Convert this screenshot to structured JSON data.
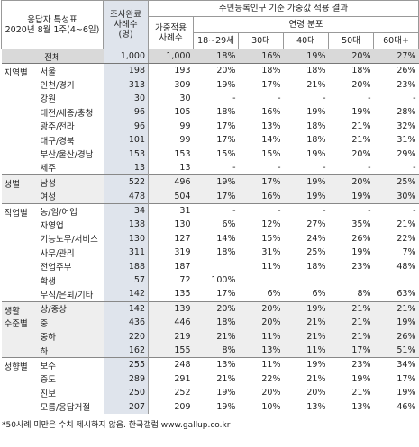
{
  "header": {
    "title": [
      "응답자 특성표",
      "2020년 8월 1주(4~6일)"
    ],
    "sample": [
      "조사완료",
      "사례수",
      "(명)"
    ],
    "weighted_title": "주민등록인구 기준 가중값 적용 결과",
    "weighted_sample": [
      "가중적용",
      "사례수"
    ],
    "age_title": "연령 분포",
    "ages": [
      "18~29세",
      "30대",
      "40대",
      "50대",
      "60대+"
    ]
  },
  "total": {
    "label": "전체",
    "cells": [
      "1,000",
      "1,000",
      "18%",
      "16%",
      "19%",
      "20%",
      "27%"
    ]
  },
  "groups": [
    {
      "name": [
        "지역별"
      ],
      "rows": [
        {
          "label": "서울",
          "cells": [
            "198",
            "193",
            "20%",
            "18%",
            "18%",
            "18%",
            "26%"
          ]
        },
        {
          "label": "인천/경기",
          "cells": [
            "313",
            "309",
            "19%",
            "17%",
            "21%",
            "20%",
            "23%"
          ]
        },
        {
          "label": "강원",
          "cells": [
            "30",
            "30",
            "-",
            "-",
            "-",
            "-",
            "-"
          ]
        },
        {
          "label": "대전/세종/충청",
          "cells": [
            "96",
            "105",
            "18%",
            "16%",
            "19%",
            "19%",
            "28%"
          ]
        },
        {
          "label": "광주/전라",
          "cells": [
            "96",
            "99",
            "17%",
            "13%",
            "18%",
            "21%",
            "32%"
          ]
        },
        {
          "label": "대구/경북",
          "cells": [
            "101",
            "99",
            "17%",
            "14%",
            "18%",
            "21%",
            "31%"
          ]
        },
        {
          "label": "부산/울산/경남",
          "cells": [
            "153",
            "153",
            "15%",
            "15%",
            "19%",
            "20%",
            "29%"
          ]
        },
        {
          "label": "제주",
          "cells": [
            "13",
            "13",
            "-",
            "-",
            "-",
            "-",
            "-"
          ]
        }
      ]
    },
    {
      "name": [
        "성별"
      ],
      "rows": [
        {
          "label": "남성",
          "cells": [
            "522",
            "496",
            "19%",
            "17%",
            "19%",
            "20%",
            "25%"
          ]
        },
        {
          "label": "여성",
          "cells": [
            "478",
            "504",
            "17%",
            "16%",
            "19%",
            "19%",
            "30%"
          ]
        }
      ]
    },
    {
      "name": [
        "직업별"
      ],
      "rows": [
        {
          "label": "농/임/어업",
          "cells": [
            "34",
            "31",
            "-",
            "-",
            "-",
            "-",
            "-"
          ]
        },
        {
          "label": "자영업",
          "cells": [
            "138",
            "130",
            "6%",
            "12%",
            "27%",
            "35%",
            "21%"
          ]
        },
        {
          "label": "기능노무/서비스",
          "cells": [
            "130",
            "127",
            "14%",
            "15%",
            "24%",
            "26%",
            "22%"
          ]
        },
        {
          "label": "사무/관리",
          "cells": [
            "311",
            "319",
            "18%",
            "31%",
            "25%",
            "19%",
            "7%"
          ]
        },
        {
          "label": "전업주부",
          "cells": [
            "188",
            "187",
            null,
            "11%",
            "18%",
            "23%",
            "48%"
          ]
        },
        {
          "label": "학생",
          "cells": [
            "57",
            "72",
            "100%",
            null,
            null,
            null,
            null
          ]
        },
        {
          "label": "무직/은퇴/기타",
          "cells": [
            "142",
            "135",
            "17%",
            "6%",
            "6%",
            "8%",
            "63%"
          ]
        }
      ]
    },
    {
      "name": [
        "생활",
        "수준별"
      ],
      "rows": [
        {
          "label": "상/중상",
          "cells": [
            "142",
            "139",
            "20%",
            "20%",
            "19%",
            "21%",
            "21%"
          ]
        },
        {
          "label": "중",
          "cells": [
            "436",
            "446",
            "18%",
            "20%",
            "21%",
            "21%",
            "19%"
          ]
        },
        {
          "label": "중하",
          "cells": [
            "220",
            "219",
            "21%",
            "11%",
            "21%",
            "21%",
            "26%"
          ]
        },
        {
          "label": "하",
          "cells": [
            "162",
            "155",
            "8%",
            "13%",
            "11%",
            "17%",
            "51%"
          ]
        }
      ]
    },
    {
      "name": [
        "성향별"
      ],
      "rows": [
        {
          "label": "보수",
          "cells": [
            "255",
            "248",
            "13%",
            "11%",
            "19%",
            "23%",
            "34%"
          ]
        },
        {
          "label": "중도",
          "cells": [
            "289",
            "291",
            "21%",
            "22%",
            "21%",
            "19%",
            "17%"
          ]
        },
        {
          "label": "진보",
          "cells": [
            "250",
            "252",
            "19%",
            "20%",
            "20%",
            "21%",
            "19%"
          ]
        },
        {
          "label": "모름/응답거절",
          "cells": [
            "207",
            "209",
            "19%",
            "10%",
            "13%",
            "13%",
            "46%"
          ]
        }
      ]
    }
  ],
  "footnote": "*50사례 미만은 수치 제시하지 않음. 한국갤럽 www.gallup.co.kr"
}
